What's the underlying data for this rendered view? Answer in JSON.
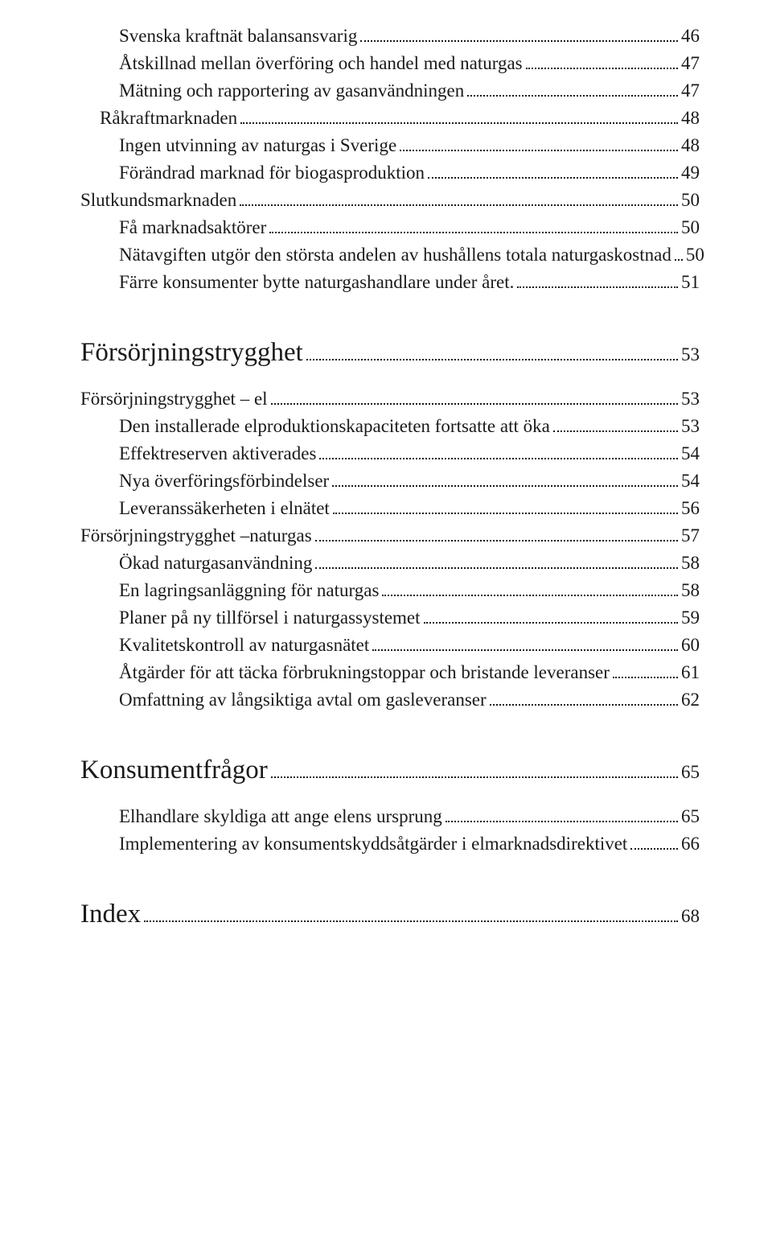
{
  "entries": [
    {
      "label": "Svenska kraftnät balansansvarig",
      "page": "46",
      "class": "toc-entry indent-1"
    },
    {
      "label": "Åtskillnad mellan överföring och handel med naturgas",
      "page": "47",
      "class": "toc-entry indent-1"
    },
    {
      "label": "Mätning och rapportering av gasanvändningen",
      "page": "47",
      "class": "toc-entry indent-1"
    },
    {
      "label": "Råkraftmarknaden",
      "page": "48",
      "class": "toc-entry indent-0"
    },
    {
      "label": "Ingen utvinning av naturgas i Sverige",
      "page": "48",
      "class": "toc-entry indent-1"
    },
    {
      "label": "Förändrad marknad för biogasproduktion",
      "page": "49",
      "class": "toc-entry indent-1"
    },
    {
      "label": "Slutkundsmarknaden",
      "page": "50",
      "class": "toc-entry sub"
    },
    {
      "label": "Få marknadsaktörer",
      "page": "50",
      "class": "toc-entry indent-1"
    },
    {
      "label": "Nätavgiften utgör den största andelen av hushållens totala naturgaskostnad",
      "page": "50",
      "class": "toc-entry indent-1"
    },
    {
      "label": "Färre konsumenter bytte naturgashandlare under året.",
      "page": "51",
      "class": "toc-entry indent-1"
    }
  ],
  "section1": {
    "label": "Försörjningstrygghet",
    "page": "53"
  },
  "section1_entries": [
    {
      "label": "Försörjningstrygghet – el",
      "page": "53",
      "class": "toc-entry sub"
    },
    {
      "label": "Den installerade elproduktionskapaciteten fortsatte att öka",
      "page": "53",
      "class": "toc-entry indent-1"
    },
    {
      "label": "Effektreserven aktiverades",
      "page": "54",
      "class": "toc-entry indent-1"
    },
    {
      "label": "Nya överföringsförbindelser",
      "page": "54",
      "class": "toc-entry indent-1"
    },
    {
      "label": "Leveranssäkerheten i elnätet",
      "page": "56",
      "class": "toc-entry indent-1"
    },
    {
      "label": "Försörjningstrygghet –naturgas",
      "page": "57",
      "class": "toc-entry sub"
    },
    {
      "label": "Ökad naturgasanvändning",
      "page": "58",
      "class": "toc-entry indent-1"
    },
    {
      "label": "En lagringsanläggning för naturgas",
      "page": "58",
      "class": "toc-entry indent-1"
    },
    {
      "label": "Planer på ny tillförsel i naturgassystemet",
      "page": "59",
      "class": "toc-entry indent-1"
    },
    {
      "label": "Kvalitetskontroll av naturgasnätet",
      "page": "60",
      "class": "toc-entry indent-1"
    },
    {
      "label": "Åtgärder för att täcka förbrukningstoppar och bristande leveranser",
      "page": "61",
      "class": "toc-entry indent-1"
    },
    {
      "label": "Omfattning av långsiktiga avtal om gasleveranser",
      "page": "62",
      "class": "toc-entry indent-1"
    }
  ],
  "section2": {
    "label": "Konsumentfrågor",
    "page": "65"
  },
  "section2_entries": [
    {
      "label": "Elhandlare skyldiga att ange elens ursprung",
      "page": "65",
      "class": "toc-entry indent-1"
    },
    {
      "label": "Implementering av konsumentskyddsåtgärder i elmarknadsdirektivet",
      "page": "66",
      "class": "toc-entry indent-1"
    }
  ],
  "section3": {
    "label": "Index",
    "page": "68"
  }
}
